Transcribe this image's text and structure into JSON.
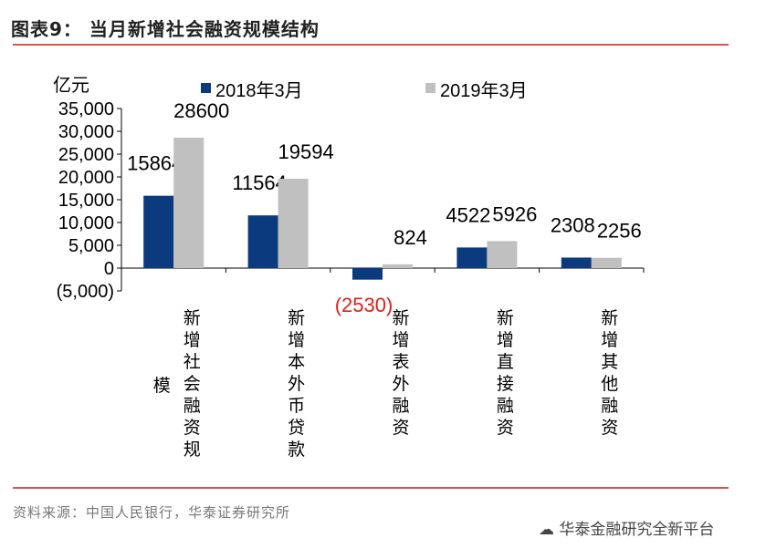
{
  "title": "图表9：  当月新增社会融资规模结构",
  "source": "资料来源：中国人民银行，华泰证券研究所",
  "watermark": "华泰金融研究全新平台",
  "colors": {
    "series1": "#0c3a7e",
    "series2": "#c0c0c0",
    "negative_label": "#e0201b",
    "rule": "#d9534f"
  },
  "chart_data": {
    "type": "bar",
    "ylabel": "亿元",
    "ylim": [
      -5000,
      35000
    ],
    "yticks": [
      35000,
      30000,
      25000,
      20000,
      15000,
      10000,
      5000,
      0,
      -5000
    ],
    "ytick_labels": [
      "35,000",
      "30,000",
      "25,000",
      "20,000",
      "15,000",
      "10,000",
      "5,000",
      "0",
      "(5,000)"
    ],
    "categories": [
      "新增社会融资规模",
      "新增本外币贷款",
      "新增表外融资",
      "新增直接融资",
      "新增其他融资"
    ],
    "series": [
      {
        "name": "2018年3月",
        "values": [
          15864,
          11564,
          -2530,
          4522,
          2308
        ],
        "labels": [
          "15864",
          "11564",
          "(2530)",
          "4522",
          "2308"
        ]
      },
      {
        "name": "2019年3月",
        "values": [
          28600,
          19594,
          824,
          5926,
          2256
        ],
        "labels": [
          "28600",
          "19594",
          "824",
          "5926",
          "2256"
        ]
      }
    ],
    "legend": "top",
    "grid": false
  }
}
